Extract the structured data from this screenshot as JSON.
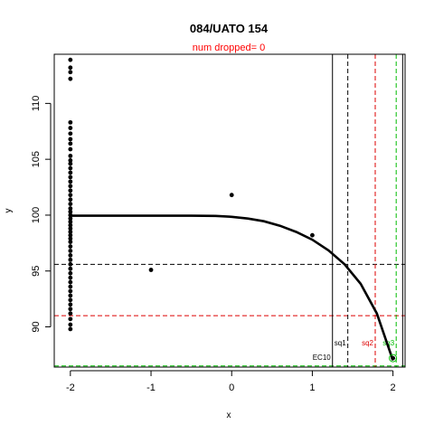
{
  "chart_data": {
    "type": "scatter",
    "title": "084/UATO 154",
    "subtitle": "num dropped= 0",
    "xlabel": "x",
    "ylabel": "y",
    "xlim": [
      -2.2,
      2.15
    ],
    "ylim": [
      86.4,
      114.4
    ],
    "x_ticks": [
      "-2",
      "-1",
      "0",
      "1",
      "2"
    ],
    "y_ticks": [
      "90",
      "95",
      "100",
      "105",
      "110"
    ],
    "colors": {
      "axis": "#000000",
      "red": "#dd0000",
      "green": "#00bb00",
      "subtitle": "#ff0000"
    },
    "points_at_x_neg2": [
      113.9,
      113.2,
      112.8,
      112.2,
      108.3,
      107.8,
      107.3,
      106.8,
      106.4,
      105.9,
      105.3,
      104.9,
      104.6,
      104.2,
      103.8,
      103.4,
      103.0,
      102.6,
      102.2,
      101.8,
      101.4,
      101.0,
      100.6,
      100.3,
      100.0,
      99.7,
      99.4,
      99.1,
      98.8,
      98.5,
      98.2,
      97.9,
      97.6,
      97.2,
      96.8,
      96.4,
      96.0,
      95.6,
      95.2,
      94.8,
      94.4,
      94.0,
      93.6,
      93.2,
      92.8,
      92.4,
      92.0,
      91.6,
      91.2,
      90.7,
      90.2,
      89.8
    ],
    "other_points": [
      {
        "x": -1.0,
        "y": 95.1
      },
      {
        "x": 0.0,
        "y": 101.8
      },
      {
        "x": 1.0,
        "y": 98.2
      },
      {
        "x": 2.0,
        "y": 87.2
      }
    ],
    "fit_curve": {
      "x": [
        -2.0,
        -1.5,
        -1.0,
        -0.5,
        -0.2,
        0.0,
        0.2,
        0.4,
        0.6,
        0.8,
        1.0,
        1.2,
        1.4,
        1.6,
        1.8,
        2.0
      ],
      "y": [
        99.95,
        99.95,
        99.95,
        99.95,
        99.93,
        99.85,
        99.7,
        99.45,
        99.05,
        98.5,
        97.8,
        96.85,
        95.6,
        93.85,
        91.2,
        87.0
      ]
    },
    "vertical_lines": [
      {
        "x": 1.25,
        "style": "solid",
        "color": "black",
        "label": "EC10"
      },
      {
        "x": 1.44,
        "style": "dashed",
        "color": "black",
        "label": "sq1"
      },
      {
        "x": 1.78,
        "style": "dashed",
        "color": "red",
        "label": "sq2"
      },
      {
        "x": 2.04,
        "style": "dashed",
        "color": "green",
        "label": "sq3"
      },
      {
        "x": 2.12,
        "style": "solid",
        "color": "black",
        "label": ""
      }
    ],
    "horizontal_lines": [
      {
        "y": 95.6,
        "style": "dashed",
        "color": "black"
      },
      {
        "y": 91.0,
        "style": "dashed",
        "color": "red"
      },
      {
        "y": 86.5,
        "style": "dashed",
        "color": "green"
      }
    ]
  }
}
